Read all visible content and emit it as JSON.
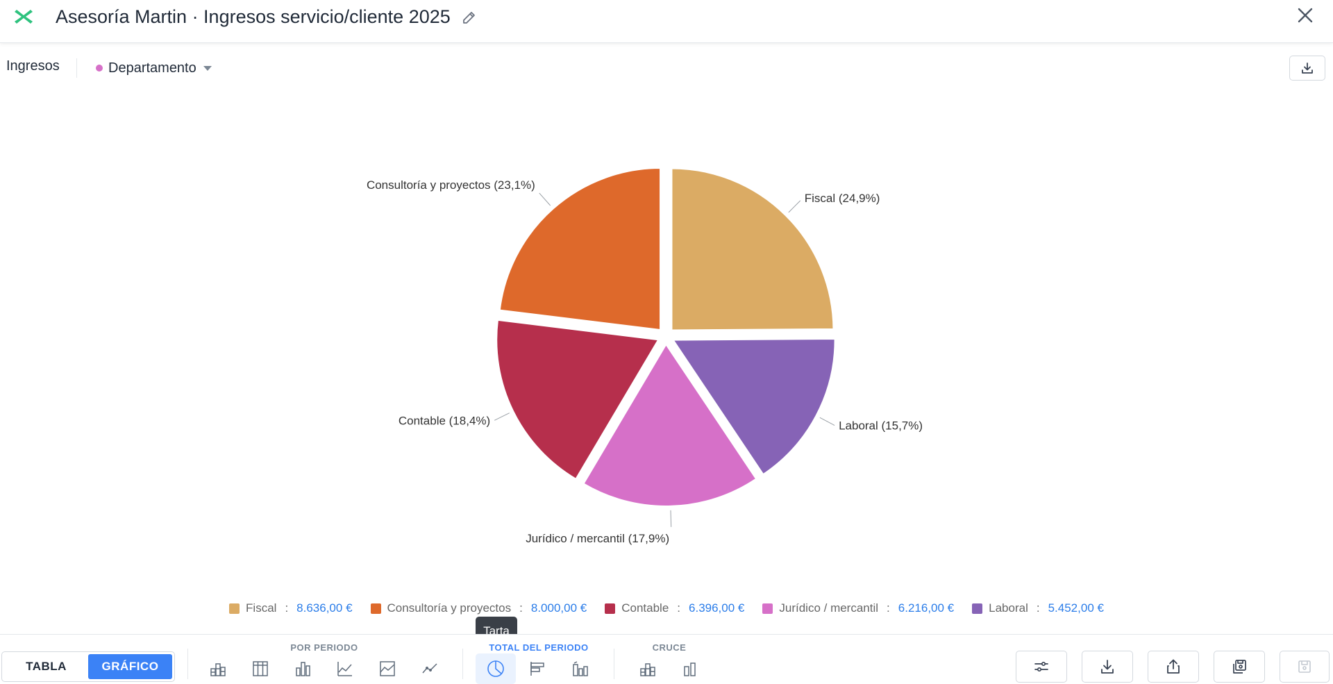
{
  "header": {
    "title": "Asesoría Martin · Ingresos servicio/cliente 2025"
  },
  "subbar": {
    "measure_label": "Ingresos",
    "dimension_label": "Departamento"
  },
  "chart_data": {
    "type": "pie",
    "categories": [
      "Fiscal",
      "Consultoría y proyectos",
      "Contable",
      "Jurídico / mercantil",
      "Laboral"
    ],
    "values": [
      8636,
      8000,
      6396,
      6216,
      5452
    ],
    "percent_labels": [
      "Fiscal (24,9%)",
      "Consultoría y proyectos (23,1%)",
      "Contable (18,4%)",
      "Jurídico / mercantil (17,9%)",
      "Laboral (15,7%)"
    ],
    "legend_values": [
      "8.636,00 €",
      "8.000,00 €",
      "6.396,00 €",
      "6.216,00 €",
      "5.452,00 €"
    ],
    "colors": [
      "#dbab64",
      "#de692b",
      "#b62f4c",
      "#d670c8",
      "#8663b6"
    ],
    "legend_position": "bottom"
  },
  "toolbar": {
    "tabla_label": "TABLA",
    "grafico_label": "GRÁFICO",
    "group_por_periodo": "POR PERIODO",
    "group_total_periodo": "TOTAL DEL PERIODO",
    "group_cruce": "CRUCE",
    "tooltip": "Tarta"
  },
  "colors": {
    "accent": "#3b82f6",
    "brand": "#22c55e"
  }
}
